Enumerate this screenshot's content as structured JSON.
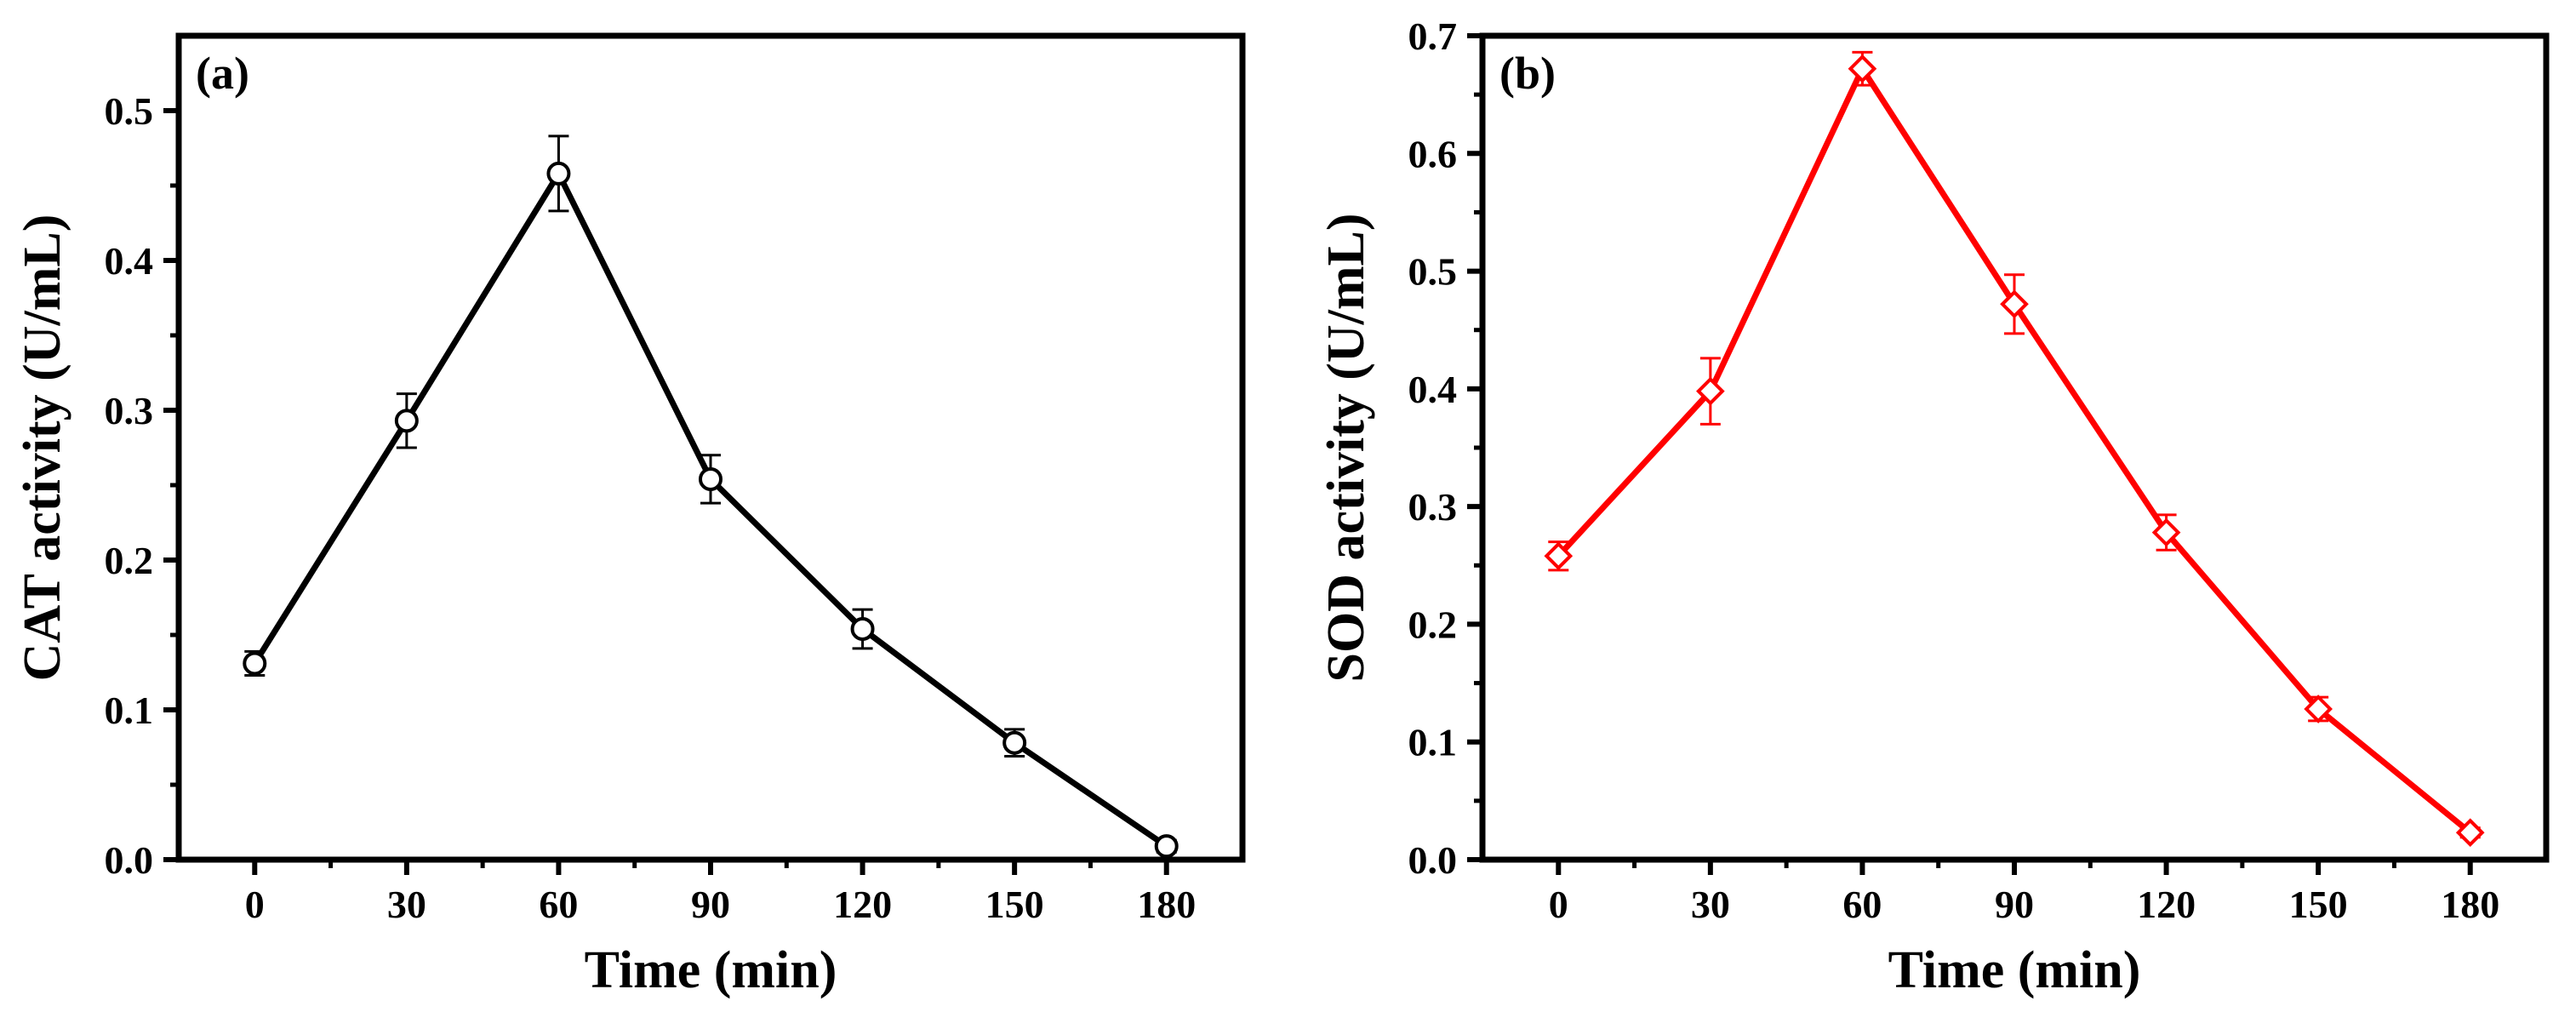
{
  "chart_data": [
    {
      "type": "line",
      "panel_label": "(a)",
      "xlabel": "Time (min)",
      "ylabel": "CAT activity (U/mL)",
      "xlim": [
        -15,
        195
      ],
      "ylim": [
        0,
        0.55
      ],
      "xticks": [
        0,
        30,
        60,
        90,
        120,
        150,
        180
      ],
      "xtick_labels": [
        "0",
        "30",
        "60",
        "90",
        "120",
        "150",
        "180"
      ],
      "yticks": [
        0,
        0.1,
        0.2,
        0.3,
        0.4,
        0.5
      ],
      "ytick_labels": [
        "0.0",
        "0.1",
        "0.2",
        "0.3",
        "0.4",
        "0.5"
      ],
      "marker": "circle",
      "color": "#000000",
      "series": [
        {
          "name": "CAT",
          "x": [
            0,
            30,
            60,
            90,
            120,
            150,
            180
          ],
          "values": [
            0.131,
            0.293,
            0.458,
            0.254,
            0.154,
            0.078,
            0.009
          ],
          "errors": [
            0.008,
            0.018,
            0.025,
            0.016,
            0.013,
            0.009,
            0.004
          ]
        }
      ]
    },
    {
      "type": "line",
      "panel_label": "(b)",
      "xlabel": "Time (min)",
      "ylabel": "SOD activity (U/mL)",
      "xlim": [
        -15,
        195
      ],
      "ylim": [
        0,
        0.7
      ],
      "xticks": [
        0,
        30,
        60,
        90,
        120,
        150,
        180
      ],
      "xtick_labels": [
        "0",
        "30",
        "60",
        "90",
        "120",
        "150",
        "180"
      ],
      "yticks": [
        0,
        0.1,
        0.2,
        0.3,
        0.4,
        0.5,
        0.6,
        0.7
      ],
      "ytick_labels": [
        "0.0",
        "0.1",
        "0.2",
        "0.3",
        "0.4",
        "0.5",
        "0.6",
        "0.7"
      ],
      "marker": "diamond",
      "color": "#ff0000",
      "series": [
        {
          "name": "SOD",
          "x": [
            0,
            30,
            60,
            90,
            120,
            150,
            180
          ],
          "values": [
            0.258,
            0.398,
            0.672,
            0.472,
            0.278,
            0.128,
            0.023
          ],
          "errors": [
            0.012,
            0.028,
            0.014,
            0.025,
            0.015,
            0.01,
            0.004
          ]
        }
      ]
    }
  ]
}
